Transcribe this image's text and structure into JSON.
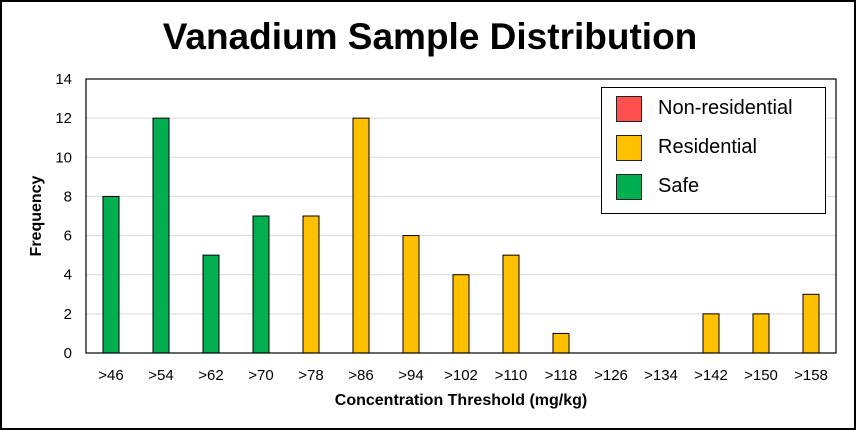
{
  "chart_data": {
    "type": "bar",
    "title": "Vanadium Sample Distribution",
    "xlabel": "Concentration Threshold (mg/kg)",
    "ylabel": "Frequency",
    "ylim": [
      0,
      14
    ],
    "yticks": [
      0,
      2,
      4,
      6,
      8,
      10,
      12,
      14
    ],
    "categories": [
      ">46",
      ">54",
      ">62",
      ">70",
      ">78",
      ">86",
      ">94",
      ">102",
      ">110",
      ">118",
      ">126",
      ">134",
      ">142",
      ">150",
      ">158"
    ],
    "values": [
      8,
      12,
      5,
      7,
      7,
      12,
      6,
      4,
      5,
      1,
      0,
      0,
      2,
      2,
      3
    ],
    "bar_classes": [
      "Safe",
      "Safe",
      "Safe",
      "Safe",
      "Residential",
      "Residential",
      "Residential",
      "Residential",
      "Residential",
      "Residential",
      "Residential",
      "Residential",
      "Residential",
      "Residential",
      "Residential"
    ],
    "legend": {
      "position": "top-right",
      "entries": [
        {
          "name": "Non-residential",
          "color": "#FF5050"
        },
        {
          "name": "Residential",
          "color": "#FFC000"
        },
        {
          "name": "Safe",
          "color": "#00B050"
        }
      ]
    },
    "grid": {
      "horizontal": true,
      "vertical": false,
      "color": "#D9D9D9"
    }
  }
}
